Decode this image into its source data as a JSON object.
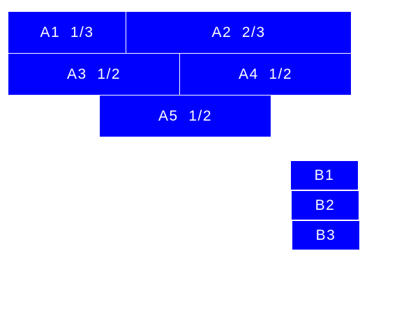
{
  "colors": {
    "block": "#0000ff",
    "text": "#ffffff"
  },
  "a_blocks": [
    {
      "label": "A1  1/3"
    },
    {
      "label": "A2  2/3"
    },
    {
      "label": "A3  1/2"
    },
    {
      "label": "A4  1/2"
    },
    {
      "label": "A5  1/2"
    }
  ],
  "b_blocks": [
    {
      "label": "B1"
    },
    {
      "label": "B2"
    },
    {
      "label": "B3"
    }
  ]
}
